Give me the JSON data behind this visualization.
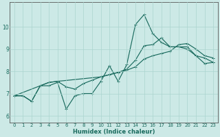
{
  "xlabel": "Humidex (Indice chaleur)",
  "bg_color": "#cce9e6",
  "grid_color": "#aad4cf",
  "line_color": "#1a6b5e",
  "spine_color": "#555555",
  "xlim": [
    -0.5,
    23.5
  ],
  "ylim": [
    5.7,
    11.1
  ],
  "xticks": [
    0,
    1,
    2,
    3,
    4,
    5,
    6,
    7,
    8,
    9,
    10,
    11,
    12,
    13,
    14,
    15,
    16,
    17,
    18,
    19,
    20,
    21,
    22,
    23
  ],
  "yticks": [
    6,
    7,
    8,
    9,
    10
  ],
  "l1x": [
    0,
    1,
    2,
    3,
    4,
    5,
    6,
    7,
    8,
    9,
    10,
    11,
    12,
    13,
    14,
    15,
    16,
    17,
    18,
    19,
    20,
    21,
    22,
    23
  ],
  "l1y": [
    6.9,
    6.9,
    6.65,
    7.35,
    7.35,
    7.5,
    6.3,
    6.9,
    7.0,
    7.0,
    7.55,
    8.25,
    7.55,
    8.3,
    10.1,
    10.55,
    9.7,
    9.3,
    9.1,
    9.1,
    9.0,
    8.7,
    8.6,
    8.4
  ],
  "l2x": [
    0,
    1,
    2,
    3,
    4,
    5,
    6,
    7,
    8,
    9,
    10,
    11,
    12,
    13,
    14,
    15,
    16,
    17,
    18,
    19,
    20,
    21,
    22,
    23
  ],
  "l2y": [
    6.9,
    6.9,
    6.65,
    7.35,
    7.5,
    7.55,
    7.3,
    7.2,
    7.45,
    7.6,
    7.75,
    7.85,
    7.95,
    8.05,
    8.2,
    8.55,
    8.7,
    8.8,
    8.9,
    9.2,
    9.25,
    9.0,
    8.7,
    8.6
  ],
  "l3x": [
    0,
    3,
    4,
    5,
    10,
    11,
    12,
    13,
    14,
    15,
    16,
    17,
    18,
    19,
    20,
    21,
    22,
    23
  ],
  "l3y": [
    6.9,
    7.35,
    7.5,
    7.55,
    7.75,
    7.85,
    7.95,
    8.1,
    8.5,
    9.15,
    9.2,
    9.5,
    9.1,
    9.1,
    9.1,
    8.7,
    8.35,
    8.4
  ],
  "tick_label_color": "#1a6b5e",
  "tick_fontsize": 5.0,
  "xlabel_fontsize": 6.0,
  "lw": 0.85,
  "ms": 2.2
}
